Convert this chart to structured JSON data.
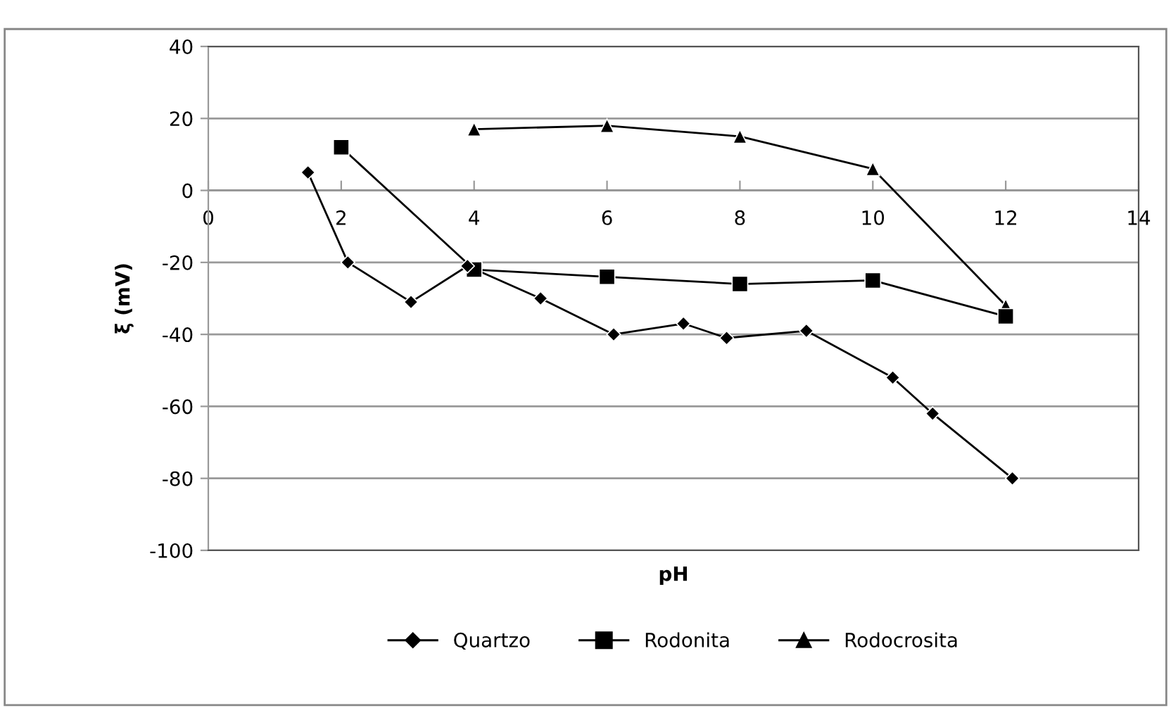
{
  "chart_data": {
    "type": "line",
    "xlabel": "pH",
    "ylabel": "ξ (mV)",
    "xlim": [
      0,
      14
    ],
    "xticks": [
      0,
      2,
      4,
      6,
      8,
      10,
      12,
      14
    ],
    "ylim": [
      -100,
      40
    ],
    "yticks": [
      -100,
      -80,
      -60,
      -40,
      -20,
      0,
      20,
      40
    ],
    "grid": "y",
    "legend": "bottom",
    "line_style": "solid",
    "series": [
      {
        "name": "Quartzo",
        "color": "#000000",
        "marker": "diamond",
        "x": [
          1.5,
          2.1,
          3.05,
          3.9,
          5.0,
          6.1,
          7.15,
          7.8,
          9.0,
          10.3,
          10.9,
          12.1
        ],
        "values": [
          5,
          -20,
          -31,
          -21,
          -30,
          -40,
          -37,
          -41,
          -39,
          -52,
          -62,
          -80
        ]
      },
      {
        "name": "Rodonita",
        "color": "#000000",
        "marker": "square",
        "x": [
          2,
          4,
          6,
          8,
          10,
          12
        ],
        "values": [
          12,
          -22,
          -24,
          -26,
          -25,
          -35
        ]
      },
      {
        "name": "Rodocrosita",
        "color": "#000000",
        "marker": "triangle",
        "x": [
          4,
          6,
          8,
          10,
          12
        ],
        "values": [
          17,
          18,
          15,
          6,
          -32
        ]
      }
    ]
  }
}
